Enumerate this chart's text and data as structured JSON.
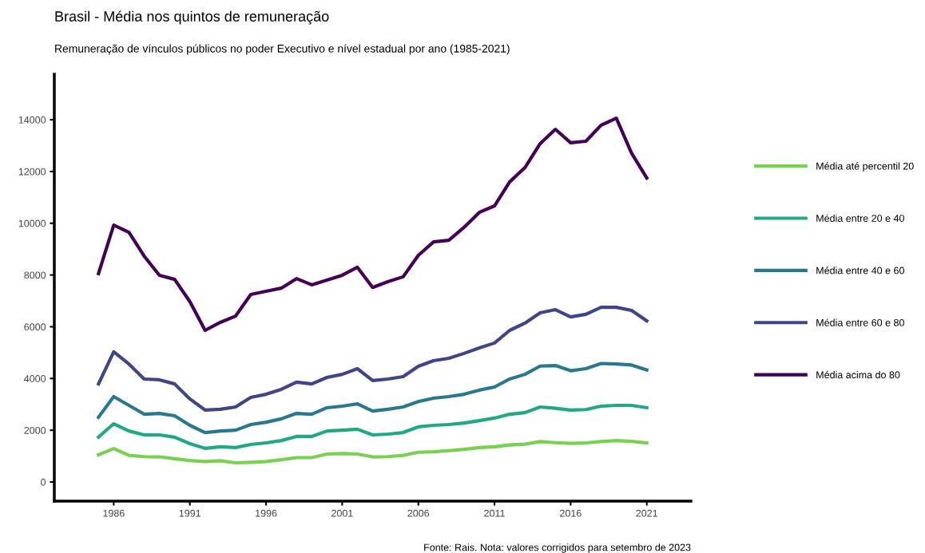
{
  "chart_data": {
    "type": "line",
    "title": "Brasil - Média nos quintos de remuneração",
    "subtitle": "Remuneração de vínculos públicos no poder Executivo e nível estadual por ano (1985-2021)",
    "x": [
      1985,
      1986,
      1987,
      1988,
      1989,
      1990,
      1991,
      1992,
      1993,
      1994,
      1995,
      1996,
      1997,
      1998,
      1999,
      2000,
      2001,
      2002,
      2003,
      2004,
      2005,
      2006,
      2007,
      2008,
      2009,
      2010,
      2011,
      2012,
      2013,
      2014,
      2015,
      2016,
      2017,
      2018,
      2019,
      2020,
      2021
    ],
    "series": [
      {
        "name": "Média até percentil 20",
        "color": "#7ad151",
        "values": [
          1050,
          1290,
          1030,
          980,
          970,
          900,
          830,
          790,
          820,
          740,
          760,
          790,
          860,
          940,
          940,
          1080,
          1100,
          1080,
          970,
          980,
          1030,
          1150,
          1170,
          1210,
          1260,
          1330,
          1360,
          1430,
          1460,
          1560,
          1520,
          1490,
          1510,
          1560,
          1600,
          1570,
          1510
        ]
      },
      {
        "name": "Média entre 20 e 40",
        "color": "#22a884",
        "values": [
          1730,
          2250,
          1970,
          1820,
          1820,
          1730,
          1480,
          1300,
          1360,
          1330,
          1450,
          1510,
          1600,
          1760,
          1760,
          1970,
          2000,
          2040,
          1820,
          1850,
          1910,
          2130,
          2190,
          2220,
          2280,
          2370,
          2470,
          2620,
          2680,
          2900,
          2850,
          2780,
          2800,
          2930,
          2960,
          2960,
          2870
        ]
      },
      {
        "name": "Média entre 40 e 60",
        "color": "#2a788e",
        "values": [
          2500,
          3300,
          2960,
          2620,
          2650,
          2560,
          2190,
          1910,
          1970,
          2000,
          2220,
          2310,
          2440,
          2650,
          2620,
          2870,
          2930,
          3020,
          2740,
          2810,
          2900,
          3110,
          3240,
          3300,
          3390,
          3550,
          3670,
          3980,
          4160,
          4480,
          4500,
          4300,
          4380,
          4580,
          4560,
          4520,
          4330
        ]
      },
      {
        "name": "Média entre 60 e 80",
        "color": "#414487",
        "values": [
          3790,
          5030,
          4560,
          3980,
          3950,
          3790,
          3210,
          2780,
          2810,
          2900,
          3270,
          3390,
          3580,
          3860,
          3790,
          4040,
          4160,
          4380,
          3920,
          3980,
          4070,
          4470,
          4690,
          4780,
          4970,
          5180,
          5370,
          5860,
          6140,
          6540,
          6660,
          6380,
          6480,
          6750,
          6750,
          6630,
          6230
        ]
      },
      {
        "name": "Média acima do 80",
        "color": "#440154",
        "values": [
          8050,
          9930,
          9650,
          8730,
          7990,
          7830,
          6970,
          5860,
          6170,
          6410,
          7250,
          7370,
          7490,
          7860,
          7620,
          7800,
          7990,
          8300,
          7520,
          7740,
          7930,
          8760,
          9280,
          9340,
          9840,
          10420,
          10670,
          11600,
          12150,
          13080,
          13630,
          13110,
          13170,
          13790,
          14060,
          12710,
          11750
        ]
      }
    ],
    "xlim": [
      1982.1,
      2023.9
    ],
    "xticks": [
      1986,
      1991,
      1996,
      2001,
      2006,
      2011,
      2016,
      2021
    ],
    "ylim": [
      -740,
      15760
    ],
    "yticks": [
      0,
      2000,
      4000,
      6000,
      8000,
      10000,
      12000,
      14000
    ],
    "grid": false,
    "legend": "right",
    "marker": "none",
    "line_style": "solid",
    "annotations": [
      "Fonte: Rais. Nota: valores corrigidos para setembro de 2023"
    ]
  }
}
